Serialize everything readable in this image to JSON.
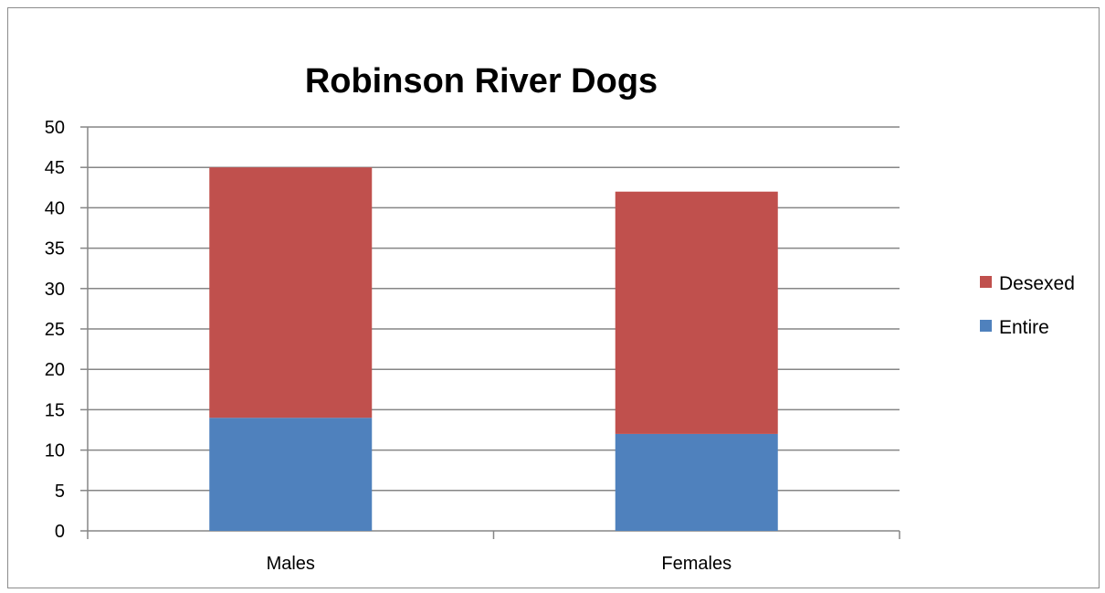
{
  "chart_data": {
    "type": "bar",
    "stacked": true,
    "title": "Robinson River Dogs",
    "categories": [
      "Males",
      "Females"
    ],
    "series": [
      {
        "name": "Entire",
        "values": [
          14,
          12
        ],
        "color": "#4f81bd"
      },
      {
        "name": "Desexed",
        "values": [
          31,
          30
        ],
        "color": "#c0504d"
      }
    ],
    "ylim": [
      0,
      50
    ],
    "yticks": [
      0,
      5,
      10,
      15,
      20,
      25,
      30,
      35,
      40,
      45,
      50
    ],
    "grid": true,
    "legend": "right",
    "legend_order": [
      "Desexed",
      "Entire"
    ]
  }
}
